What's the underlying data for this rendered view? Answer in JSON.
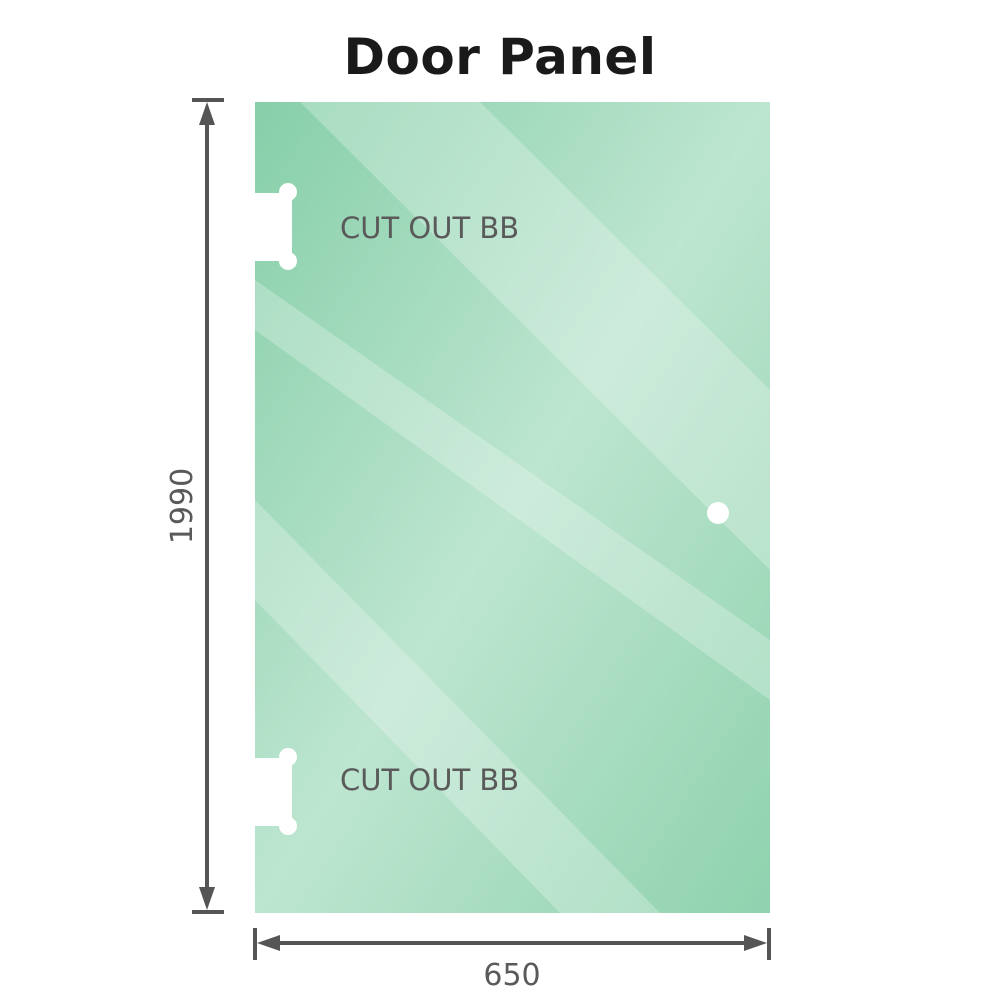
{
  "title": "Door Panel",
  "labels": {
    "cutout_top": "CUT OUT BB",
    "cutout_bottom": "CUT OUT BB"
  },
  "dimensions": {
    "height": "1990",
    "width": "650"
  },
  "colors": {
    "glass": "#86cfa9",
    "glass_light": "#bfe6d2",
    "dimension_line": "#555555"
  }
}
